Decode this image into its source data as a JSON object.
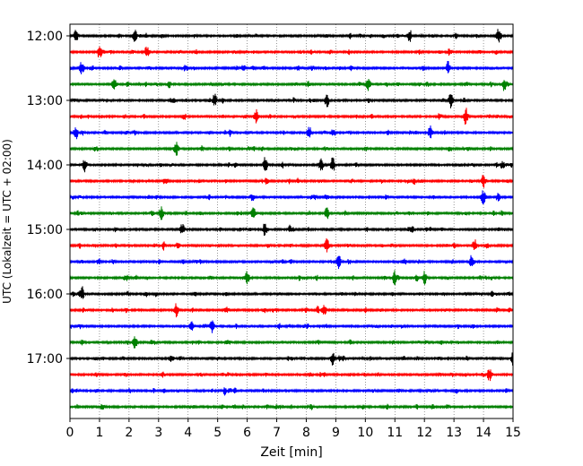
{
  "chart_data": {
    "type": "line",
    "title": "",
    "xlabel": "Zeit  [min]",
    "ylabel": "UTC (Lokalzeit = UTC + 02:00)",
    "xlim": [
      0,
      15
    ],
    "x_ticks": [
      "0",
      "1",
      "2",
      "3",
      "4",
      "5",
      "6",
      "7",
      "8",
      "9",
      "10",
      "11",
      "12",
      "13",
      "14",
      "15"
    ],
    "y_tick_labels": [
      "12:00",
      "13:00",
      "14:00",
      "15:00",
      "16:00",
      "17:00"
    ],
    "grid": "vertical dotted",
    "trace_interval_minutes": 15,
    "series": [
      {
        "start": "12:00",
        "color": "#000000",
        "events": [
          0.2,
          2.2,
          11.5,
          14.5
        ]
      },
      {
        "start": "12:15",
        "color": "#ff0000",
        "events": [
          1.0,
          2.6
        ]
      },
      {
        "start": "12:30",
        "color": "#0000ff",
        "events": [
          0.4,
          12.8
        ]
      },
      {
        "start": "12:45",
        "color": "#008000",
        "events": [
          1.5,
          10.1,
          14.7
        ]
      },
      {
        "start": "13:00",
        "color": "#000000",
        "events": [
          4.9,
          8.7,
          12.9
        ]
      },
      {
        "start": "13:15",
        "color": "#ff0000",
        "events": [
          6.3,
          13.4
        ]
      },
      {
        "start": "13:30",
        "color": "#0000ff",
        "events": [
          0.2,
          8.1,
          12.2
        ]
      },
      {
        "start": "13:45",
        "color": "#008000",
        "events": [
          3.6
        ]
      },
      {
        "start": "14:00",
        "color": "#000000",
        "events": [
          0.5,
          6.6,
          8.5,
          8.9
        ]
      },
      {
        "start": "14:15",
        "color": "#ff0000",
        "events": [
          14.0
        ]
      },
      {
        "start": "14:30",
        "color": "#0000ff",
        "events": [
          14.0
        ]
      },
      {
        "start": "14:45",
        "color": "#008000",
        "events": [
          3.1,
          6.2,
          8.7
        ]
      },
      {
        "start": "15:00",
        "color": "#000000",
        "events": [
          3.8,
          6.6
        ]
      },
      {
        "start": "15:15",
        "color": "#ff0000",
        "events": [
          8.7,
          13.7
        ]
      },
      {
        "start": "15:30",
        "color": "#0000ff",
        "events": [
          9.1,
          13.6
        ]
      },
      {
        "start": "15:45",
        "color": "#008000",
        "events": [
          6.0,
          11.0,
          12.0
        ]
      },
      {
        "start": "16:00",
        "color": "#000000",
        "events": [
          0.4
        ]
      },
      {
        "start": "16:15",
        "color": "#ff0000",
        "events": [
          3.6,
          8.6
        ]
      },
      {
        "start": "16:30",
        "color": "#0000ff",
        "events": [
          4.8
        ]
      },
      {
        "start": "16:45",
        "color": "#008000",
        "events": [
          2.2
        ]
      },
      {
        "start": "17:00",
        "color": "#000000",
        "events": [
          8.9,
          15.0
        ]
      },
      {
        "start": "17:15",
        "color": "#ff0000",
        "events": [
          14.2
        ]
      },
      {
        "start": "17:30",
        "color": "#0000ff",
        "events": []
      },
      {
        "start": "17:45",
        "color": "#008000",
        "events": []
      }
    ]
  }
}
